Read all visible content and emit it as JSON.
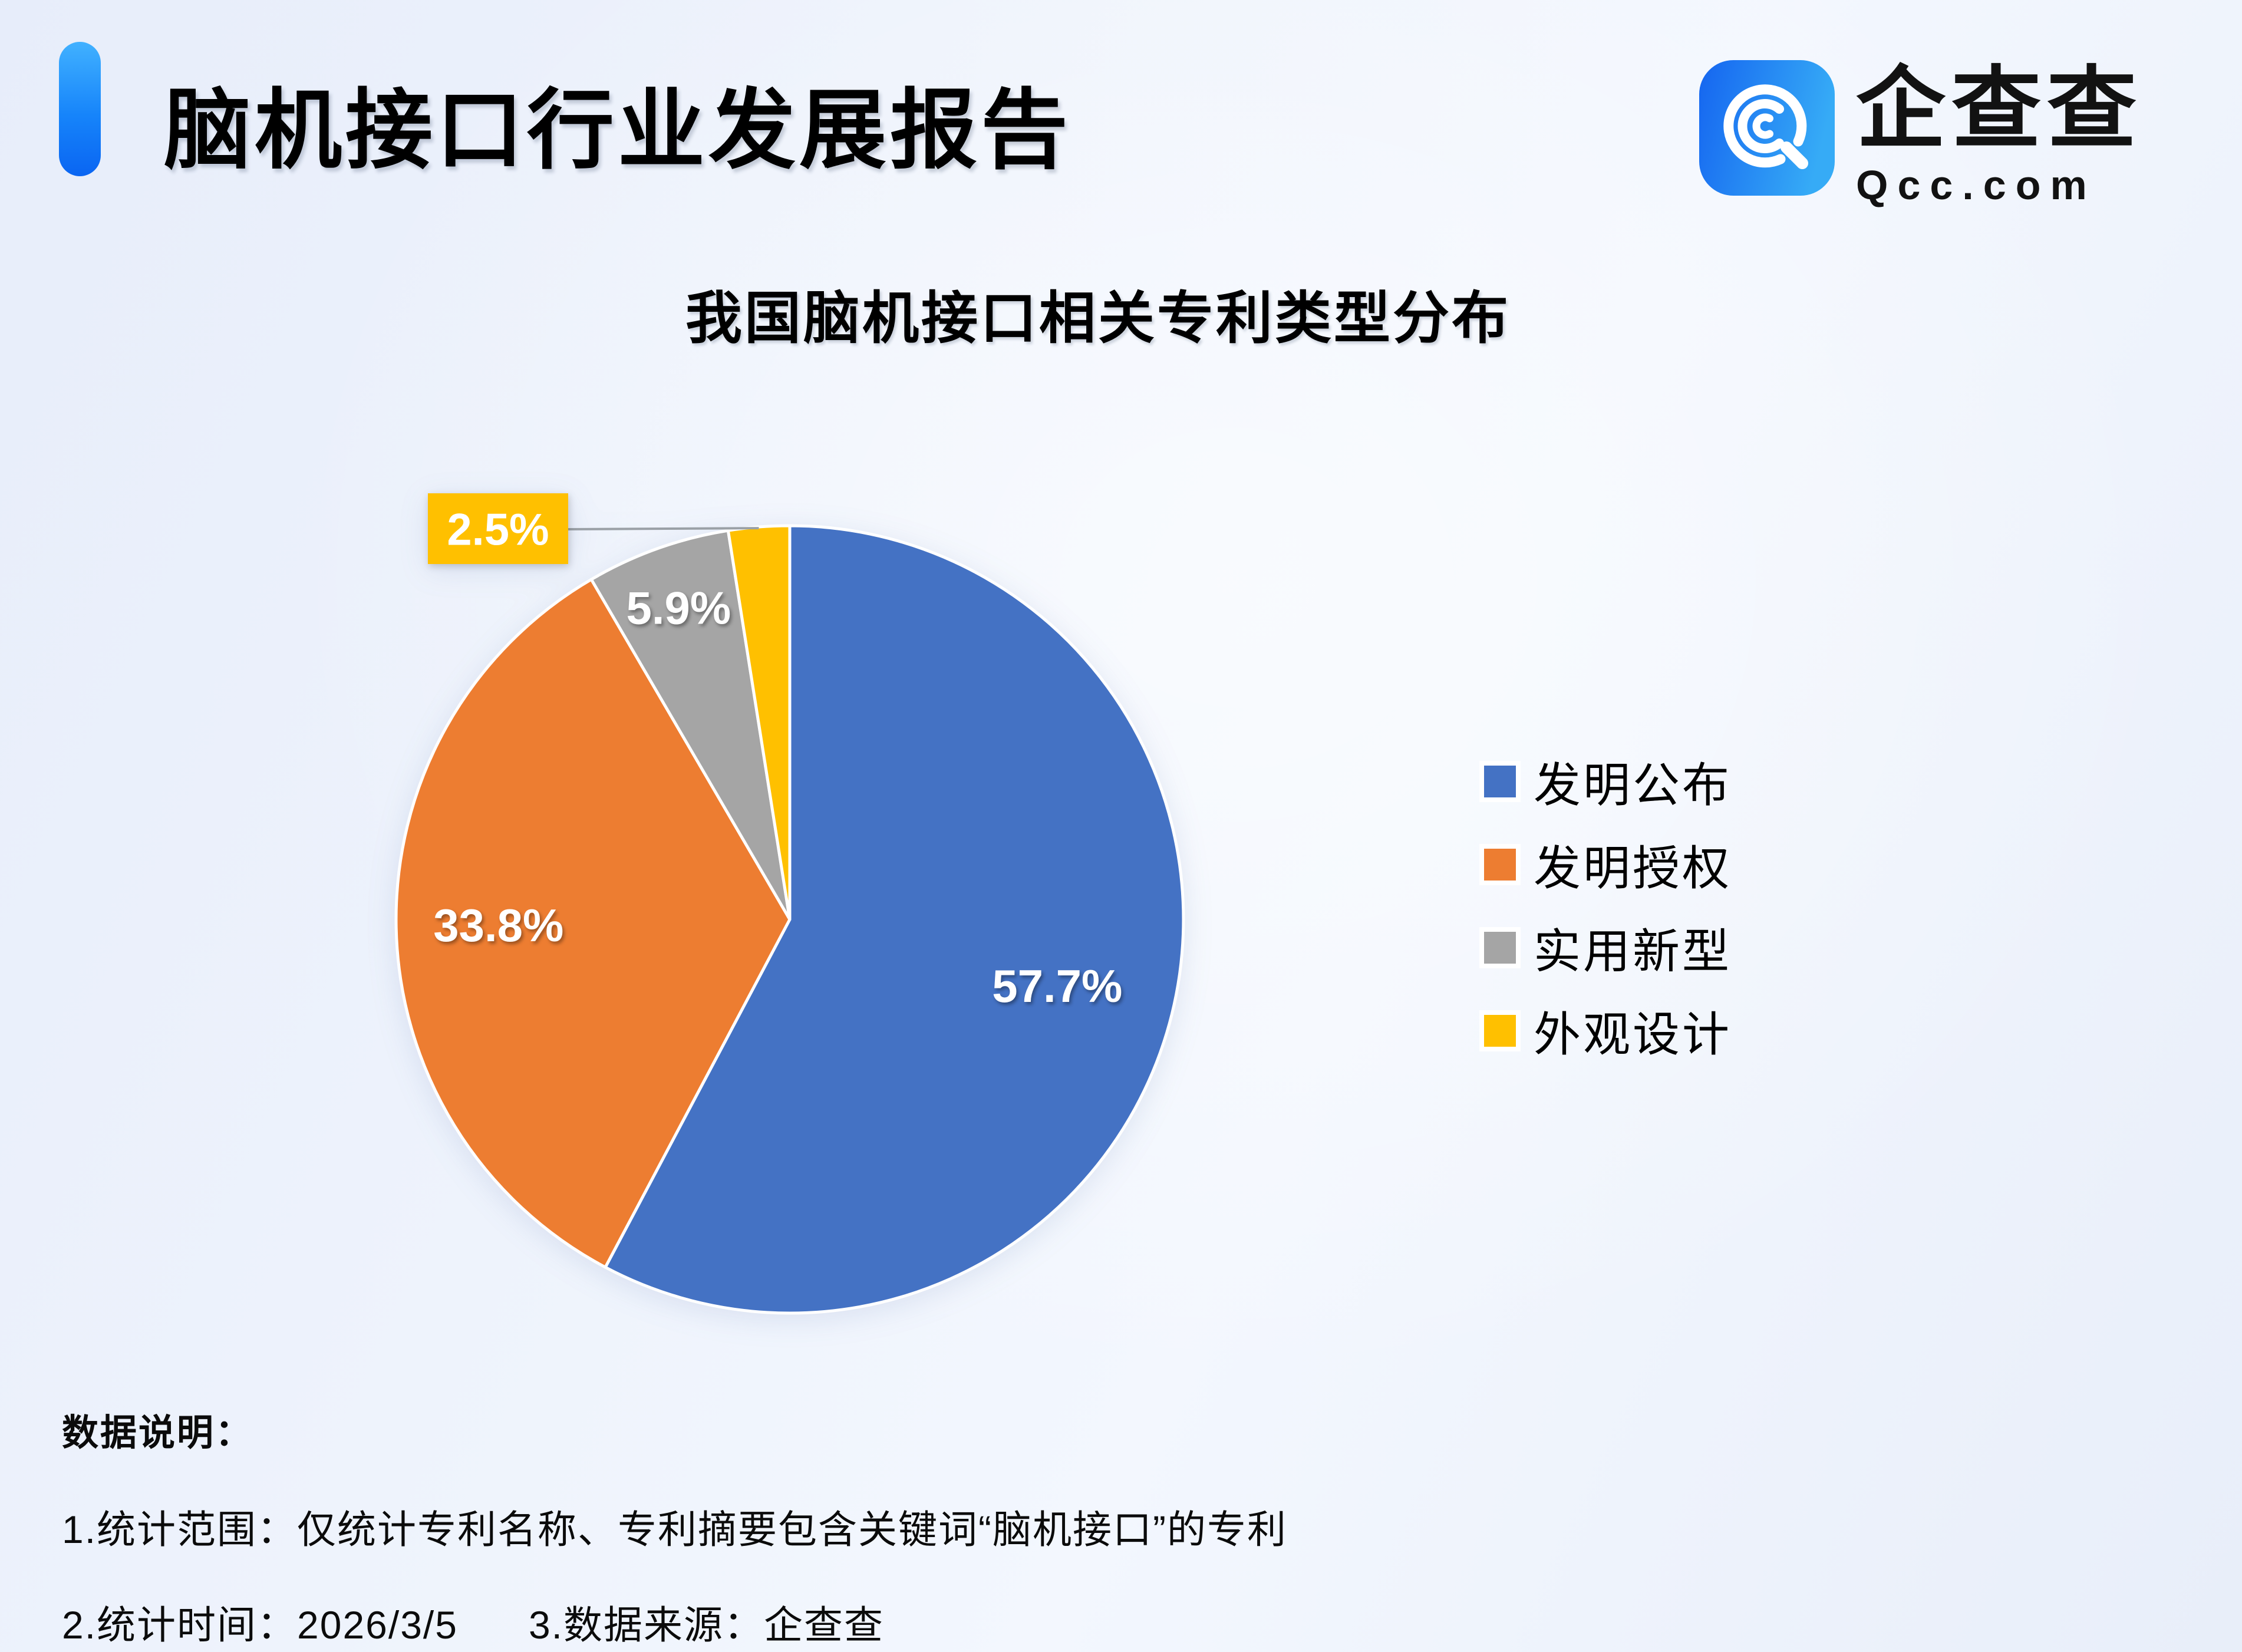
{
  "header": {
    "title": "脑机接口行业发展报告",
    "accent_color_top": "#41B1FF",
    "accent_color_bottom": "#0A65F2",
    "brand": {
      "name": "企查查",
      "domain": "Qcc.com",
      "icon_color_left": "#1565F0",
      "icon_color_right": "#36ABF6"
    }
  },
  "chart_data": {
    "type": "pie",
    "title": "我国脑机接口相关专利类型分布",
    "categories": [
      "发明公布",
      "发明授权",
      "实用新型",
      "外观设计"
    ],
    "values": [
      57.7,
      33.8,
      5.9,
      2.5
    ],
    "unit": "%",
    "labels": [
      "57.7%",
      "33.8%",
      "5.9%",
      "2.5%"
    ],
    "colors": [
      "#4472C4",
      "#ED7D31",
      "#A5A5A5",
      "#FFC000"
    ],
    "legend_position": "right",
    "start_angle_deg": 0,
    "direction": "clockwise",
    "slice_border_color": "#FFFFFF"
  },
  "footer": {
    "heading": "数据说明：",
    "note_scope": "1.统计范围：仅统计专利名称、专利摘要包含关键词“脑机接口”的专利",
    "note_time": "2.统计时间：2026/3/5",
    "note_source": "3.数据来源：企查查"
  }
}
